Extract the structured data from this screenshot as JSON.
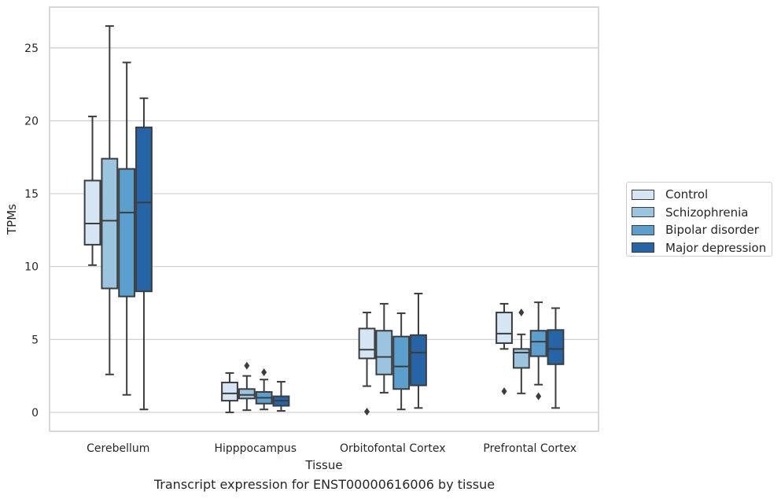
{
  "chart_data": {
    "type": "box",
    "title": "",
    "xlabel": "Tissue",
    "ylabel": "TPMs",
    "caption": "Transcript expression for ENST00000616006 by tissue",
    "ylim": [
      -1.3,
      27.8
    ],
    "yticks": [
      0,
      5,
      10,
      15,
      20,
      25
    ],
    "grid": "horizontal",
    "legend_position": "right",
    "categories": [
      "Cerebellum",
      "Hipppocampus",
      "Orbitofontal Cortex",
      "Prefrontal Cortex"
    ],
    "series": [
      {
        "name": "Control",
        "color": "#d6e5f4",
        "boxes": [
          {
            "whisker_low": 10.1,
            "q1": 11.5,
            "median": 12.95,
            "q3": 15.9,
            "whisker_high": 20.3,
            "outliers": []
          },
          {
            "whisker_low": 0.0,
            "q1": 0.8,
            "median": 1.3,
            "q3": 2.05,
            "whisker_high": 2.7,
            "outliers": []
          },
          {
            "whisker_low": 1.8,
            "q1": 3.7,
            "median": 4.3,
            "q3": 5.75,
            "whisker_high": 6.85,
            "outliers": [
              0.05
            ]
          },
          {
            "whisker_low": 4.35,
            "q1": 4.75,
            "median": 5.4,
            "q3": 6.85,
            "whisker_high": 7.45,
            "outliers": [
              1.45
            ]
          }
        ]
      },
      {
        "name": "Schizophrenia",
        "color": "#9ac4df",
        "boxes": [
          {
            "whisker_low": 2.6,
            "q1": 8.5,
            "median": 13.15,
            "q3": 17.4,
            "whisker_high": 26.5,
            "outliers": []
          },
          {
            "whisker_low": 0.15,
            "q1": 0.95,
            "median": 1.2,
            "q3": 1.6,
            "whisker_high": 2.5,
            "outliers": [
              3.2
            ]
          },
          {
            "whisker_low": 1.35,
            "q1": 2.6,
            "median": 3.8,
            "q3": 5.6,
            "whisker_high": 7.45,
            "outliers": []
          },
          {
            "whisker_low": 1.3,
            "q1": 3.05,
            "median": 4.1,
            "q3": 4.35,
            "whisker_high": 5.35,
            "outliers": [
              6.85
            ]
          }
        ]
      },
      {
        "name": "Bipolar disorder",
        "color": "#5a9fcd",
        "boxes": [
          {
            "whisker_low": 1.2,
            "q1": 7.95,
            "median": 13.7,
            "q3": 16.7,
            "whisker_high": 24.0,
            "outliers": []
          },
          {
            "whisker_low": 0.2,
            "q1": 0.6,
            "median": 1.0,
            "q3": 1.4,
            "whisker_high": 2.25,
            "outliers": [
              2.75
            ]
          },
          {
            "whisker_low": 0.2,
            "q1": 1.6,
            "median": 3.15,
            "q3": 5.2,
            "whisker_high": 6.8,
            "outliers": []
          },
          {
            "whisker_low": 1.9,
            "q1": 3.85,
            "median": 4.85,
            "q3": 5.6,
            "whisker_high": 7.55,
            "outliers": [
              1.1
            ]
          }
        ]
      },
      {
        "name": "Major depression",
        "color": "#2565a7",
        "boxes": [
          {
            "whisker_low": 0.2,
            "q1": 8.3,
            "median": 14.4,
            "q3": 19.55,
            "whisker_high": 21.55,
            "outliers": []
          },
          {
            "whisker_low": 0.1,
            "q1": 0.45,
            "median": 0.8,
            "q3": 1.1,
            "whisker_high": 2.1,
            "outliers": []
          },
          {
            "whisker_low": 0.3,
            "q1": 1.85,
            "median": 4.1,
            "q3": 5.3,
            "whisker_high": 8.15,
            "outliers": []
          },
          {
            "whisker_low": 0.3,
            "q1": 3.3,
            "median": 4.35,
            "q3": 5.65,
            "whisker_high": 7.15,
            "outliers": []
          }
        ]
      }
    ]
  }
}
